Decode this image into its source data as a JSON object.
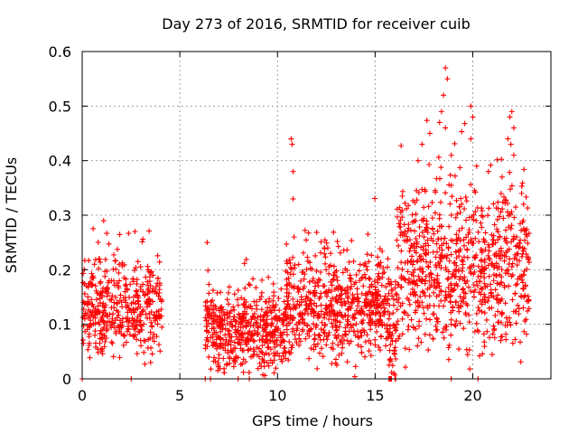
{
  "chart_data": {
    "type": "scatter",
    "title": "Day 273 of 2016, SRMTID for receiver cuib",
    "xlabel": "GPS time / hours",
    "ylabel": "SRMTID / TECUs",
    "xlim": [
      0,
      24
    ],
    "ylim": [
      0,
      0.6
    ],
    "x_ticks": [
      0,
      5,
      10,
      15,
      20
    ],
    "y_ticks": [
      0,
      0.1,
      0.2,
      0.3,
      0.4,
      0.5,
      0.6
    ],
    "grid": true,
    "marker": "+",
    "series_color": "#ff0000",
    "series": [
      {
        "name": "SRMTID",
        "segments": [
          {
            "start": 0.0,
            "end": 4.1,
            "center": 0.13,
            "spread": 0.05,
            "count": 430
          },
          {
            "start": 6.3,
            "end": 10.4,
            "center": 0.085,
            "spread": 0.04,
            "count": 480
          },
          {
            "start": 10.4,
            "end": 15.7,
            "center": 0.13,
            "spread": 0.05,
            "count": 620
          },
          {
            "start": 15.7,
            "end": 16.1,
            "center": 0.06,
            "spread": 0.06,
            "count": 60
          },
          {
            "start": 16.1,
            "end": 22.9,
            "center": 0.2,
            "spread": 0.08,
            "count": 820
          }
        ],
        "bursts": [
          {
            "x": 0.0,
            "y": 0.0
          },
          {
            "x": 6.3,
            "y": 0.0
          },
          {
            "x": 10.7,
            "y": 0.44
          },
          {
            "x": 10.75,
            "y": 0.43
          },
          {
            "x": 10.8,
            "y": 0.38
          },
          {
            "x": 10.8,
            "y": 0.33
          },
          {
            "x": 10.85,
            "y": 0.26
          },
          {
            "x": 1.1,
            "y": 0.29
          },
          {
            "x": 2.7,
            "y": 0.27
          },
          {
            "x": 6.4,
            "y": 0.25
          },
          {
            "x": 18.6,
            "y": 0.57
          },
          {
            "x": 18.7,
            "y": 0.55
          },
          {
            "x": 18.5,
            "y": 0.52
          },
          {
            "x": 18.4,
            "y": 0.49
          },
          {
            "x": 18.3,
            "y": 0.47
          },
          {
            "x": 18.6,
            "y": 0.46
          },
          {
            "x": 17.8,
            "y": 0.45
          },
          {
            "x": 19.9,
            "y": 0.5
          },
          {
            "x": 20.0,
            "y": 0.48
          },
          {
            "x": 19.9,
            "y": 0.44
          },
          {
            "x": 21.9,
            "y": 0.48
          },
          {
            "x": 22.0,
            "y": 0.49
          },
          {
            "x": 22.1,
            "y": 0.46
          },
          {
            "x": 21.8,
            "y": 0.44
          },
          {
            "x": 21.95,
            "y": 0.43
          },
          {
            "x": 22.1,
            "y": 0.41
          },
          {
            "x": 17.4,
            "y": 0.43
          },
          {
            "x": 17.2,
            "y": 0.4
          },
          {
            "x": 20.2,
            "y": 0.39
          },
          {
            "x": 20.8,
            "y": 0.38
          },
          {
            "x": 21.5,
            "y": 0.37
          },
          {
            "x": 18.9,
            "y": 0.41
          },
          {
            "x": 22.5,
            "y": 0.34
          },
          {
            "x": 22.6,
            "y": 0.32
          }
        ]
      }
    ]
  }
}
